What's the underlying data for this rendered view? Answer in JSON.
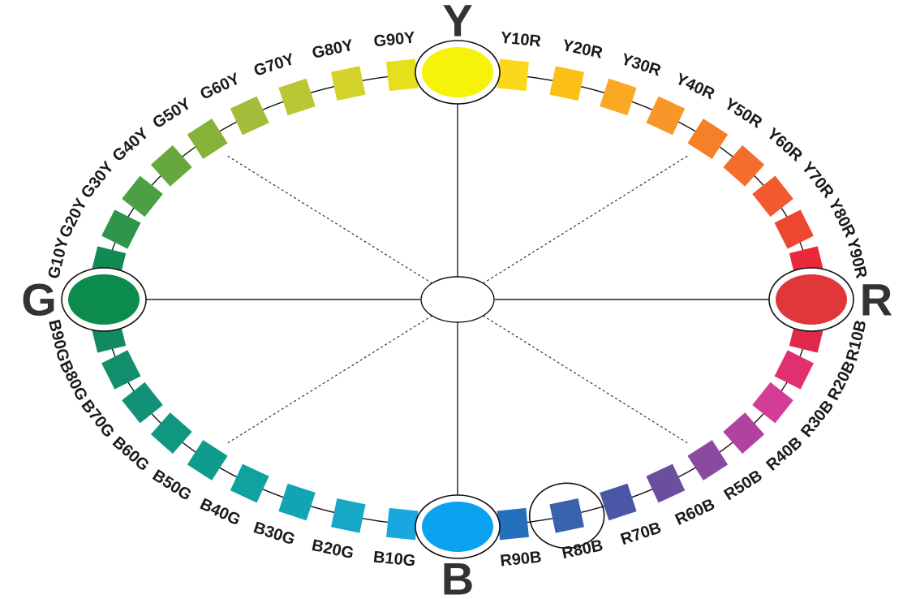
{
  "diagram": {
    "primaries": [
      {
        "letter": "Y",
        "color": "#f7f20a",
        "angle": 0
      },
      {
        "letter": "R",
        "color": "#e0373b",
        "angle": 90
      },
      {
        "letter": "B",
        "color": "#0aa2ee",
        "angle": 180
      },
      {
        "letter": "G",
        "color": "#0b8c4c",
        "angle": 270
      }
    ],
    "hues": [
      {
        "label": "Y10R",
        "color": "#fbd91a"
      },
      {
        "label": "Y20R",
        "color": "#fcbf17"
      },
      {
        "label": "Y30R",
        "color": "#faa924"
      },
      {
        "label": "Y40R",
        "color": "#f8962a"
      },
      {
        "label": "Y50R",
        "color": "#f58028"
      },
      {
        "label": "Y60R",
        "color": "#f36e2b"
      },
      {
        "label": "Y70R",
        "color": "#f05a2e"
      },
      {
        "label": "Y80R",
        "color": "#ee4730"
      },
      {
        "label": "Y90R",
        "color": "#e9293a"
      },
      {
        "label": "R10B",
        "color": "#e0284d"
      },
      {
        "label": "R20B",
        "color": "#e1306f"
      },
      {
        "label": "R30B",
        "color": "#d43d96"
      },
      {
        "label": "R40B",
        "color": "#b043a0"
      },
      {
        "label": "R50B",
        "color": "#8a4a9f"
      },
      {
        "label": "R60B",
        "color": "#6a4f9e"
      },
      {
        "label": "R70B",
        "color": "#4a56a6"
      },
      {
        "label": "R80B",
        "color": "#3862ae"
      },
      {
        "label": "R90B",
        "color": "#2470ba"
      },
      {
        "label": "B10G",
        "color": "#1aa6de"
      },
      {
        "label": "B20G",
        "color": "#17a8c8"
      },
      {
        "label": "B30G",
        "color": "#12a4b2"
      },
      {
        "label": "B40G",
        "color": "#10a29f"
      },
      {
        "label": "B50G",
        "color": "#109c8d"
      },
      {
        "label": "B60G",
        "color": "#109781"
      },
      {
        "label": "B70G",
        "color": "#119276"
      },
      {
        "label": "B80G",
        "color": "#128e6c"
      },
      {
        "label": "B90G",
        "color": "#128a5f"
      },
      {
        "label": "G10Y",
        "color": "#138a52"
      },
      {
        "label": "G20Y",
        "color": "#2d964a"
      },
      {
        "label": "G30Y",
        "color": "#4aa043"
      },
      {
        "label": "G40Y",
        "color": "#66a83e"
      },
      {
        "label": "G50Y",
        "color": "#86b23a"
      },
      {
        "label": "G60Y",
        "color": "#a1bd3a"
      },
      {
        "label": "G70Y",
        "color": "#b9c734"
      },
      {
        "label": "G80Y",
        "color": "#d3d22a"
      },
      {
        "label": "G90Y",
        "color": "#e5df1c"
      }
    ],
    "highlighted_hue": "R80B"
  }
}
